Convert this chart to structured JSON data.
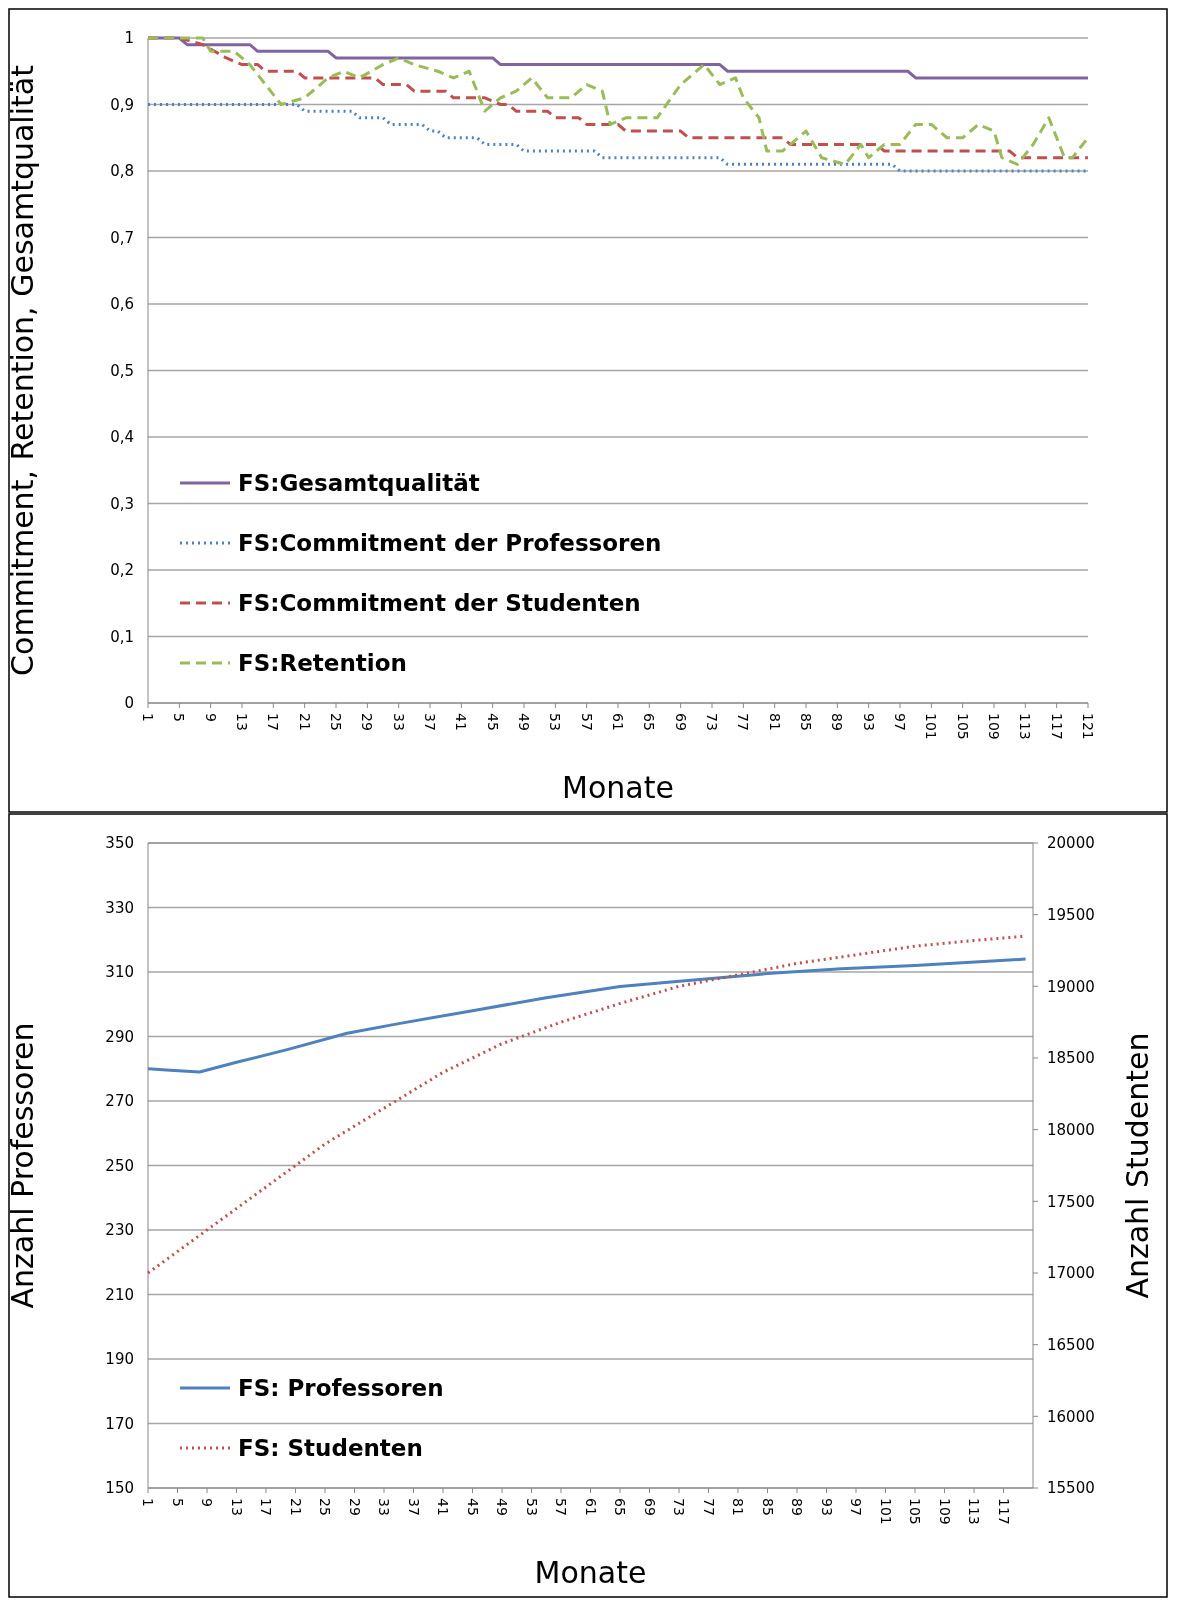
{
  "chart_data": [
    {
      "type": "line",
      "xlabel": "Monate",
      "ylabel": "Commitment, Retention, Gesamtqualität",
      "xlim": [
        1,
        121
      ],
      "xticks": [
        1,
        5,
        9,
        13,
        17,
        21,
        25,
        29,
        33,
        37,
        41,
        45,
        49,
        53,
        57,
        61,
        65,
        69,
        73,
        77,
        81,
        85,
        89,
        93,
        97,
        101,
        105,
        109,
        113,
        117,
        121
      ],
      "ylim": [
        0,
        1
      ],
      "yticks": [
        0,
        {
          "value": 0.1,
          "label": "0,1"
        },
        {
          "value": 0.2,
          "label": "0,2"
        },
        {
          "value": 0.3,
          "label": "0,3"
        },
        {
          "value": 0.4,
          "label": "0,4"
        },
        {
          "value": 0.5,
          "label": "0,5"
        },
        {
          "value": 0.6,
          "label": "0,6"
        },
        {
          "value": 0.7,
          "label": "0,7"
        },
        {
          "value": 0.8,
          "label": "0,8"
        },
        {
          "value": 0.9,
          "label": "0,9"
        },
        1
      ],
      "grid": "y",
      "legend": "bottom left",
      "marker": "none",
      "series": [
        {
          "name": "FS:Gesamtqualität",
          "color": "#8064a2",
          "line_style": "solid",
          "x": [
            1,
            5,
            6,
            14,
            15,
            24,
            25,
            45,
            46,
            74,
            75,
            98,
            99,
            121
          ],
          "values": [
            1,
            1,
            0.99,
            0.99,
            0.98,
            0.98,
            0.97,
            0.97,
            0.96,
            0.96,
            0.95,
            0.95,
            0.94,
            0.94
          ]
        },
        {
          "name": "FS:Commitment der Professoren",
          "color": "#4f81bd",
          "line_style": "dotted",
          "x": [
            1,
            20,
            21,
            27,
            28,
            31,
            32,
            36,
            37,
            38,
            39,
            43,
            44,
            48,
            49,
            58,
            59,
            74,
            75,
            96,
            97,
            121
          ],
          "values": [
            0.9,
            0.9,
            0.89,
            0.89,
            0.88,
            0.88,
            0.87,
            0.87,
            0.86,
            0.86,
            0.85,
            0.85,
            0.84,
            0.84,
            0.83,
            0.83,
            0.82,
            0.82,
            0.81,
            0.81,
            0.8,
            0.8
          ]
        },
        {
          "name": "FS:Commitment der Studenten",
          "color": "#c0504d",
          "line_style": "dashed",
          "x": [
            1,
            5,
            8,
            11,
            13,
            15,
            16,
            20,
            21,
            30,
            31,
            34,
            35,
            39,
            40,
            44,
            46,
            47,
            48,
            52,
            53,
            56,
            57,
            61,
            62,
            69,
            70,
            82,
            83,
            94,
            95,
            111,
            112,
            121
          ],
          "values": [
            1,
            1,
            0.99,
            0.97,
            0.96,
            0.96,
            0.95,
            0.95,
            0.94,
            0.94,
            0.93,
            0.93,
            0.92,
            0.92,
            0.91,
            0.91,
            0.9,
            0.9,
            0.89,
            0.89,
            0.88,
            0.88,
            0.87,
            0.87,
            0.86,
            0.86,
            0.85,
            0.85,
            0.84,
            0.84,
            0.83,
            0.83,
            0.82,
            0.82
          ]
        },
        {
          "name": "FS:Retention",
          "color": "#9bbb59",
          "line_style": "dashed",
          "x": [
            1,
            8,
            9,
            12,
            14,
            16,
            18,
            21,
            24,
            26,
            28,
            31,
            33,
            35,
            38,
            40,
            42,
            44,
            46,
            48,
            50,
            52,
            55,
            57,
            59,
            60,
            62,
            66,
            69,
            72,
            74,
            76,
            77,
            79,
            80,
            82,
            85,
            87,
            90,
            92,
            93,
            95,
            97,
            99,
            101,
            103,
            105,
            107,
            109,
            110,
            112,
            114,
            116,
            118,
            119,
            121
          ],
          "values": [
            1,
            1,
            0.98,
            0.98,
            0.96,
            0.93,
            0.9,
            0.91,
            0.94,
            0.95,
            0.94,
            0.96,
            0.97,
            0.96,
            0.95,
            0.94,
            0.95,
            0.89,
            0.91,
            0.92,
            0.94,
            0.91,
            0.91,
            0.93,
            0.92,
            0.87,
            0.88,
            0.88,
            0.93,
            0.96,
            0.93,
            0.94,
            0.91,
            0.88,
            0.83,
            0.83,
            0.86,
            0.82,
            0.81,
            0.84,
            0.82,
            0.84,
            0.84,
            0.87,
            0.87,
            0.85,
            0.85,
            0.87,
            0.86,
            0.82,
            0.81,
            0.84,
            0.88,
            0.82,
            0.82,
            0.85
          ]
        }
      ]
    },
    {
      "type": "line",
      "xlabel": "Monate",
      "ylabel": "Anzahl Professoren",
      "y2label": "Anzahl Studenten",
      "xlim": [
        1,
        121
      ],
      "xticks": [
        1,
        5,
        9,
        13,
        17,
        21,
        25,
        29,
        33,
        37,
        41,
        45,
        49,
        53,
        57,
        61,
        65,
        69,
        73,
        77,
        81,
        85,
        89,
        93,
        97,
        101,
        105,
        109,
        113,
        117
      ],
      "ylim": [
        150,
        350
      ],
      "yticks": [
        150,
        170,
        190,
        210,
        230,
        250,
        270,
        290,
        310,
        330,
        350
      ],
      "y2lim": [
        15500,
        20000
      ],
      "y2ticks": [
        15500,
        16000,
        16500,
        17000,
        17500,
        18000,
        18500,
        19000,
        19500,
        20000
      ],
      "grid": "y",
      "legend": "bottom left",
      "marker": "none",
      "series": [
        {
          "name": "FS: Professoren",
          "color": "#4f81bd",
          "line_style": "solid",
          "x": [
            1,
            4,
            8,
            13,
            20,
            28,
            35,
            45,
            55,
            65,
            75,
            85,
            95,
            105,
            120
          ],
          "values": [
            280,
            279.5,
            279,
            282,
            286,
            291,
            294,
            298,
            302,
            305.5,
            307.5,
            309.5,
            311,
            312,
            314
          ]
        },
        {
          "name": "FS: Studenten",
          "color": "#c0504d",
          "line_style": "dotted",
          "axis": "y2",
          "x": [
            1,
            9,
            17,
            25,
            33,
            41,
            49,
            57,
            65,
            73,
            81,
            89,
            97,
            105,
            113,
            120
          ],
          "values": [
            17000,
            17300,
            17600,
            17900,
            18150,
            18400,
            18600,
            18750,
            18880,
            19000,
            19080,
            19160,
            19220,
            19280,
            19320,
            19350
          ]
        }
      ]
    }
  ]
}
